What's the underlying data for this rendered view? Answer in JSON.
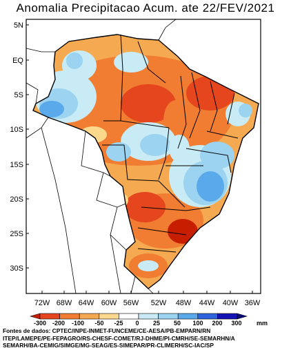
{
  "title": "Anomalia Precipitacao Acum. ate 22/FEV/2021",
  "lat_labels": [
    "5N",
    "EQ",
    "5S",
    "10S",
    "15S",
    "20S",
    "25S",
    "30S"
  ],
  "lon_labels": [
    "72W",
    "68W",
    "64W",
    "60W",
    "56W",
    "52W",
    "48W",
    "44W",
    "40W",
    "36W"
  ],
  "legend": {
    "values": [
      "-300",
      "-200",
      "-100",
      "-50",
      "-25",
      "0",
      "25",
      "50",
      "100",
      "200",
      "300"
    ],
    "unit": "mm",
    "colors": [
      "#c81e00",
      "#e6461e",
      "#f07d32",
      "#f5a950",
      "#fbd88c",
      "#ffffff",
      "#c8ebf5",
      "#9bd3f0",
      "#5aaaeb",
      "#2d64dc",
      "#1414b4",
      "#0a0a78"
    ]
  },
  "sources": {
    "line1": "Fontes de dados: CPTEC/INPE-INMET-FUNCEME/CE-AESA/PB-EMPARN/RN",
    "line2": "ITEP/LAMEPE/PE-FEPAGRO/RS-CHESF-COMET/RJ-DHME/PI-CMRH/SE-SEMARHN/A",
    "line3": "SEMARH/BA-CEMIG/SIMGE/MG-SEAG/ES-SIMEPAR/PR-CLIMERH/SC-IAC/SP"
  }
}
